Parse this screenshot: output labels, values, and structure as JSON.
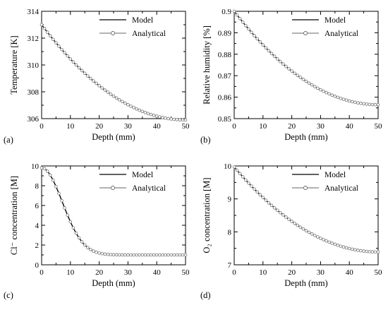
{
  "chart_data": [
    {
      "type": "line",
      "panel_label": "(a)",
      "xlabel": "Depth (mm)",
      "ylabel": "Temperature [K]",
      "xlim": [
        0,
        50
      ],
      "ylim": [
        306,
        314
      ],
      "xticks": [
        0,
        10,
        20,
        30,
        40,
        50
      ],
      "yticks": [
        306,
        308,
        310,
        312,
        314
      ],
      "grid": false,
      "legend_position": "top-right",
      "curve": {
        "start": 313.0,
        "end": 305.9,
        "shape": "quadratic-decay"
      },
      "series": [
        {
          "name": "Model",
          "style": "solid-line",
          "x": [
            0,
            5,
            10,
            15,
            20,
            25,
            30,
            35,
            40,
            45,
            50
          ],
          "y": [
            313.0,
            311.65,
            310.45,
            309.4,
            308.45,
            307.65,
            307.0,
            306.5,
            306.15,
            305.95,
            305.9
          ]
        },
        {
          "name": "Analytical",
          "style": "line-with-circle-markers",
          "x": [
            0,
            5,
            10,
            15,
            20,
            25,
            30,
            35,
            40,
            45,
            50
          ],
          "y": [
            313.0,
            311.65,
            310.45,
            309.4,
            308.45,
            307.65,
            307.0,
            306.5,
            306.15,
            305.95,
            305.9
          ]
        }
      ]
    },
    {
      "type": "line",
      "panel_label": "(b)",
      "xlabel": "Depth (mm)",
      "ylabel": "Relative humidity [%]",
      "xlim": [
        0,
        50
      ],
      "ylim": [
        0.85,
        0.9
      ],
      "xticks": [
        0,
        10,
        20,
        30,
        40,
        50
      ],
      "yticks": [
        0.85,
        0.86,
        0.87,
        0.88,
        0.89,
        0.9
      ],
      "ytick_labels": [
        "0.85",
        "0.86",
        "0.87",
        "0.88",
        "0.89",
        "0.9"
      ],
      "grid": false,
      "legend_position": "top-right",
      "curve": {
        "start": 0.9,
        "end": 0.8565,
        "shape": "quadratic-decay"
      },
      "series": [
        {
          "name": "Model",
          "style": "solid-line",
          "x": [
            0,
            5,
            10,
            15,
            20,
            25,
            30,
            35,
            40,
            45,
            50
          ],
          "y": [
            0.9,
            0.8917,
            0.8843,
            0.8778,
            0.8722,
            0.8674,
            0.8635,
            0.8604,
            0.8583,
            0.857,
            0.8565
          ]
        },
        {
          "name": "Analytical",
          "style": "line-with-circle-markers",
          "x": [
            0,
            5,
            10,
            15,
            20,
            25,
            30,
            35,
            40,
            45,
            50
          ],
          "y": [
            0.9,
            0.8917,
            0.8843,
            0.8778,
            0.8722,
            0.8674,
            0.8635,
            0.8604,
            0.8583,
            0.857,
            0.8565
          ]
        }
      ]
    },
    {
      "type": "line",
      "panel_label": "(c)",
      "xlabel": "Depth (mm)",
      "ylabel": "Cl⁻ concentration [M]",
      "xlim": [
        0,
        50
      ],
      "ylim": [
        0,
        10
      ],
      "xticks": [
        0,
        10,
        20,
        30,
        40,
        50
      ],
      "yticks": [
        0,
        2,
        4,
        6,
        8,
        10
      ],
      "grid": false,
      "legend_position": "top-right",
      "curve": {
        "start": 9.8,
        "end": 1.0,
        "shape": "gaussian-decay",
        "width": 7.2
      },
      "series": [
        {
          "name": "Model",
          "style": "solid-line",
          "x": [
            0,
            2,
            4,
            6,
            8,
            10,
            12,
            15,
            20,
            30,
            40,
            50
          ],
          "y": [
            9.8,
            9.46,
            8.5,
            7.06,
            5.38,
            3.73,
            2.33,
            1.18,
            1.0,
            1.0,
            1.0,
            1.0
          ]
        },
        {
          "name": "Analytical",
          "style": "line-with-circle-markers",
          "x": [
            0,
            2,
            4,
            6,
            8,
            10,
            12,
            15,
            20,
            30,
            40,
            50
          ],
          "y": [
            9.8,
            9.46,
            8.5,
            7.06,
            5.38,
            3.73,
            2.33,
            1.18,
            1.0,
            1.0,
            1.0,
            1.0
          ]
        }
      ]
    },
    {
      "type": "line",
      "panel_label": "(d)",
      "xlabel": "Depth (mm)",
      "ylabel": "O₂ concentration [M]",
      "xlim": [
        0,
        50
      ],
      "ylim": [
        7,
        10
      ],
      "xticks": [
        0,
        10,
        20,
        30,
        40,
        50
      ],
      "yticks": [
        7,
        8,
        9,
        10
      ],
      "grid": false,
      "legend_position": "top-right",
      "curve": {
        "start": 9.97,
        "end": 7.39,
        "shape": "quadratic-decay"
      },
      "series": [
        {
          "name": "Model",
          "style": "solid-line",
          "x": [
            0,
            5,
            10,
            15,
            20,
            25,
            30,
            35,
            40,
            45,
            50
          ],
          "y": [
            9.97,
            9.48,
            9.04,
            8.66,
            8.32,
            8.04,
            7.8,
            7.62,
            7.49,
            7.42,
            7.39
          ]
        },
        {
          "name": "Analytical",
          "style": "line-with-circle-markers",
          "x": [
            0,
            5,
            10,
            15,
            20,
            25,
            30,
            35,
            40,
            45,
            50
          ],
          "y": [
            9.97,
            9.48,
            9.04,
            8.66,
            8.32,
            8.04,
            7.8,
            7.62,
            7.49,
            7.42,
            7.39
          ]
        }
      ]
    }
  ]
}
